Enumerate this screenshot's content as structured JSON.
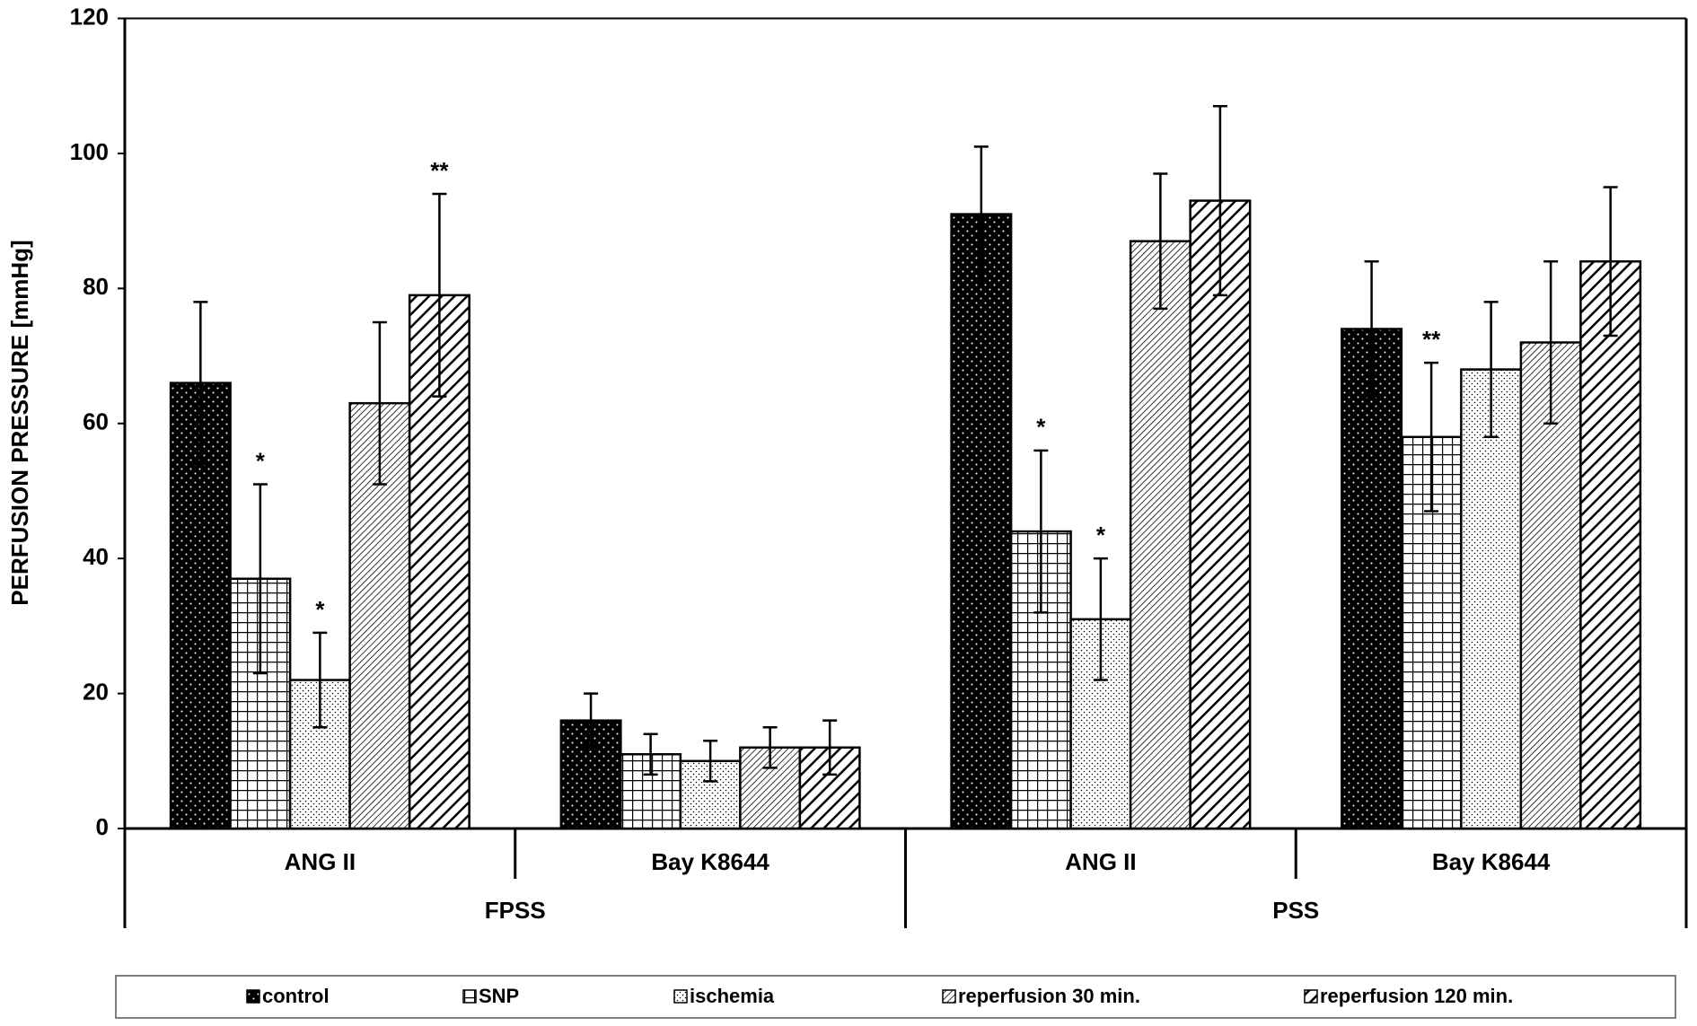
{
  "chart_data": {
    "type": "bar",
    "y_label": "PERFUSION PRESSURE [mmHg]",
    "groups": [
      {
        "name": "FPSS",
        "categories": [
          "ANG II",
          "Bay K8644"
        ]
      },
      {
        "name": "PSS",
        "categories": [
          "ANG II",
          "Bay K8644"
        ]
      }
    ],
    "series": [
      {
        "name": "control",
        "pattern": "dots",
        "values": [
          66,
          16,
          91,
          74
        ],
        "errors": [
          12,
          4,
          10,
          10
        ],
        "significance": [
          null,
          null,
          null,
          null
        ]
      },
      {
        "name": "SNP",
        "pattern": "grid",
        "values": [
          37,
          11,
          44,
          58
        ],
        "errors": [
          14,
          3,
          12,
          11
        ],
        "significance": [
          "*",
          null,
          "*",
          "**"
        ]
      },
      {
        "name": "ischemia",
        "pattern": "stipple",
        "values": [
          22,
          10,
          31,
          68
        ],
        "errors": [
          7,
          3,
          9,
          10
        ],
        "significance": [
          "*",
          null,
          "*",
          null
        ]
      },
      {
        "name": "reperfusion 30 min.",
        "pattern": "fine-hatch",
        "values": [
          63,
          12,
          87,
          72
        ],
        "errors": [
          12,
          3,
          10,
          12
        ],
        "significance": [
          null,
          null,
          null,
          null
        ]
      },
      {
        "name": "reperfusion 120 min.",
        "pattern": "hatch",
        "values": [
          79,
          12,
          93,
          84
        ],
        "errors": [
          15,
          4,
          14,
          11
        ],
        "significance": [
          "**",
          null,
          null,
          null
        ]
      }
    ],
    "ylim": [
      0,
      120
    ],
    "yticks": [
      0,
      20,
      40,
      60,
      80,
      100,
      120
    ],
    "grid": false,
    "legend": "bottom"
  }
}
